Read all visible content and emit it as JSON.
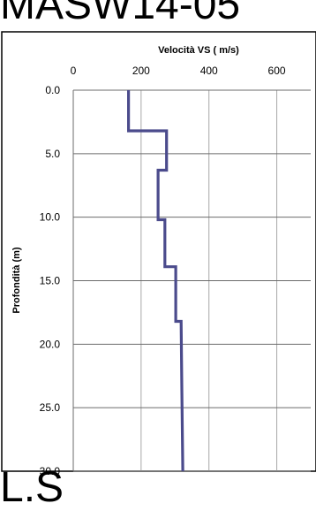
{
  "page": {
    "top_title": "MASW14-05",
    "bottom_text": "L.S"
  },
  "chart_data": {
    "type": "line",
    "title": "Velocità VS ( m/s)",
    "xlabel": "Velocità VS ( m/s)",
    "ylabel": "Profondità (m)",
    "x_axis_position": "top",
    "y_axis_inverted": true,
    "xlim": [
      0,
      700
    ],
    "ylim": [
      0,
      30
    ],
    "x_ticks": [
      "0",
      "200",
      "400",
      "600"
    ],
    "y_ticks": [
      "0.0",
      "5.0",
      "10.0",
      "15.0",
      "20.0",
      "25.0",
      "30.0"
    ],
    "grid": true,
    "line_color": "#4b4b8c",
    "series": [
      {
        "values": [
          {
            "x": 163,
            "y": 0.0
          },
          {
            "x": 163,
            "y": 3.2
          },
          {
            "x": 275,
            "y": 3.2
          },
          {
            "x": 275,
            "y": 6.3
          },
          {
            "x": 250,
            "y": 6.3
          },
          {
            "x": 250,
            "y": 10.2
          },
          {
            "x": 270,
            "y": 10.2
          },
          {
            "x": 270,
            "y": 13.9
          },
          {
            "x": 302,
            "y": 13.9
          },
          {
            "x": 302,
            "y": 18.2
          },
          {
            "x": 318,
            "y": 18.2
          },
          {
            "x": 320,
            "y": 23.5
          },
          {
            "x": 323,
            "y": 30.0
          }
        ]
      }
    ]
  }
}
